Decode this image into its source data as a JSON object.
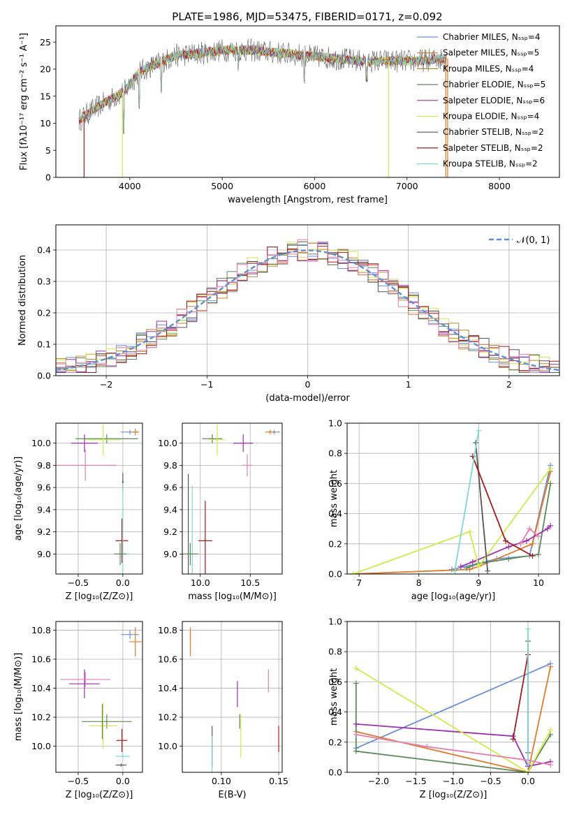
{
  "figure_title": "PLATE=1986, MJD=53475, FIBERID=0171, z=0.092",
  "colors": {
    "chabrier_miles": "#6a8fdb",
    "salpeter_miles": "#e07b2a",
    "kroupa_miles": "#b8862b",
    "chabrier_elodie": "#5a8a5a",
    "salpeter_elodie": "#9b2fae",
    "kroupa_elodie": "#d4e84a",
    "chabrier_stelib": "#555555",
    "salpeter_stelib": "#a51c1c",
    "kroupa_stelib": "#7fd8d8",
    "pink": "#e67fb0",
    "grid": "#b0b0b0",
    "normal_curve": "#5b8fd6"
  },
  "chart_data": [
    {
      "id": "spectrum",
      "type": "line",
      "xlabel": "wavelength [Angstrom, rest frame]",
      "ylabel": "Flux [fλ10⁻¹⁷ erg cm⁻² s⁻¹ A⁻¹]",
      "xlim": [
        3200,
        8650
      ],
      "ylim": [
        0,
        28
      ],
      "xticks": [
        4000,
        5000,
        6000,
        7000,
        8000
      ],
      "yticks": [
        0,
        5,
        10,
        15,
        20,
        25
      ],
      "grid": false,
      "legend_position": "top-right",
      "legend": [
        {
          "label": "Chabrier MILES, Nₛₛₚ=4",
          "color_key": "chabrier_miles"
        },
        {
          "label": "Salpeter MILES, Nₛₛₚ=5",
          "color_key": "salpeter_miles"
        },
        {
          "label": "Kroupa MILES, Nₛₛₚ=4",
          "color_key": "kroupa_miles"
        },
        {
          "label": "Chabrier ELODIE, Nₛₛₚ=5",
          "color_key": "chabrier_elodie"
        },
        {
          "label": "Salpeter ELODIE, Nₛₛₚ=6",
          "color_key": "salpeter_elodie"
        },
        {
          "label": "Kroupa ELODIE, Nₛₛₚ=4",
          "color_key": "kroupa_elodie"
        },
        {
          "label": "Chabrier STELIB, Nₛₛₚ=2",
          "color_key": "chabrier_stelib"
        },
        {
          "label": "Salpeter STELIB, Nₛₛₚ=2",
          "color_key": "salpeter_stelib"
        },
        {
          "label": "Kroupa STELIB, Nₛₛₚ=2",
          "color_key": "kroupa_stelib"
        }
      ],
      "continuum": {
        "x": [
          3450,
          3600,
          3800,
          3950,
          4100,
          4300,
          4500,
          4800,
          5000,
          5300,
          5600,
          5900,
          6200,
          6500,
          6800,
          7100,
          7450
        ],
        "y": [
          10.5,
          12.5,
          14.5,
          16,
          19.5,
          21,
          22.5,
          23,
          23.5,
          23.5,
          23,
          22.5,
          22,
          21.5,
          21.5,
          21.5,
          22
        ]
      },
      "drops": [
        {
          "x": 3505,
          "y": 0,
          "color_key": "salpeter_stelib"
        },
        {
          "x": 3920,
          "y": 0,
          "color_key": "kroupa_elodie"
        },
        {
          "x": 6800,
          "y": 0,
          "color_key": "kroupa_elodie"
        },
        {
          "x": 7420,
          "y": 0,
          "color_key": "salpeter_miles"
        }
      ],
      "absorption": [
        {
          "x": 3934,
          "depth": 7
        },
        {
          "x": 4102,
          "depth": 6
        },
        {
          "x": 4340,
          "depth": 5
        },
        {
          "x": 5175,
          "depth": 2
        },
        {
          "x": 5890,
          "depth": 4
        },
        {
          "x": 6563,
          "depth": 3
        }
      ]
    },
    {
      "id": "residuals",
      "type": "line",
      "xlabel": "(data-model)/error",
      "ylabel": "Normed distribution",
      "xlim": [
        -2.5,
        2.5
      ],
      "ylim": [
        0,
        0.48
      ],
      "xticks": [
        -2,
        -1,
        0,
        1,
        2
      ],
      "yticks": [
        0.0,
        0.1,
        0.2,
        0.3,
        0.4
      ],
      "grid": true,
      "legend_position": "top-right",
      "legend": [
        {
          "label": "𝒩(0, 1)",
          "color_key": "normal_curve",
          "style": "dashed"
        }
      ],
      "bin_width": 0.1,
      "note": "step histograms, one per model fit"
    },
    {
      "id": "age_vs_Z",
      "type": "scatter",
      "xlabel": "Z [log₁₀(Z/Z⊙)]",
      "ylabel": "age  [log₁₀(age/yr)]",
      "xlim": [
        -0.75,
        0.22
      ],
      "ylim": [
        8.82,
        10.18
      ],
      "xticks": [
        -0.5,
        0.0
      ],
      "yticks": [
        9.0,
        9.2,
        9.4,
        9.6,
        9.8,
        10.0
      ],
      "grid": true,
      "points": [
        {
          "x": 0.08,
          "y": 10.1,
          "xerr": 0.1,
          "yerr": 0.02,
          "color_key": "chabrier_miles"
        },
        {
          "x": 0.14,
          "y": 10.1,
          "xerr": 0.04,
          "yerr": 0.03,
          "color_key": "salpeter_miles"
        },
        {
          "x": -0.18,
          "y": 10.04,
          "xerr": 0.35,
          "yerr": 0.04,
          "color_key": "chabrier_elodie"
        },
        {
          "x": -0.43,
          "y": 10.0,
          "xerr": 0.15,
          "yerr": 0.08,
          "color_key": "salpeter_elodie"
        },
        {
          "x": -0.22,
          "y": 10.03,
          "xerr": 0.2,
          "yerr": 0.14,
          "color_key": "kroupa_elodie"
        },
        {
          "x": -0.42,
          "y": 9.8,
          "xerr": 0.35,
          "yerr": 0.14,
          "color_key": "pink"
        },
        {
          "x": 0.0,
          "y": 9.65,
          "xerr": 0.01,
          "yerr": 0.08,
          "color_key": "chabrier_stelib"
        },
        {
          "x": -0.01,
          "y": 9.12,
          "xerr": 0.07,
          "yerr": 0.2,
          "color_key": "salpeter_stelib"
        },
        {
          "x": 0.0,
          "y": 9.0,
          "xerr": 0.08,
          "yerr": 0.64,
          "color_key": "kroupa_stelib"
        },
        {
          "x": -0.03,
          "y": 9.0,
          "xerr": 0.07,
          "yerr": 0.1,
          "color_key": "chabrier_elodie"
        }
      ]
    },
    {
      "id": "age_vs_mass",
      "type": "scatter",
      "xlabel": "mass [log₁₀(M/M⊙)]",
      "ylabel": "",
      "xlim": [
        9.82,
        10.82
      ],
      "ylim": [
        8.82,
        10.18
      ],
      "xticks": [
        10.0,
        10.5
      ],
      "yticks": [
        9.0,
        9.2,
        9.4,
        9.6,
        9.8,
        10.0
      ],
      "grid": true,
      "points": [
        {
          "x": 10.74,
          "y": 10.1,
          "xerr": 0.06,
          "yerr": 0.02,
          "color_key": "chabrier_miles"
        },
        {
          "x": 10.7,
          "y": 10.1,
          "xerr": 0.05,
          "yerr": 0.02,
          "color_key": "salpeter_miles"
        },
        {
          "x": 10.12,
          "y": 10.04,
          "xerr": 0.1,
          "yerr": 0.04,
          "color_key": "chabrier_elodie"
        },
        {
          "x": 10.43,
          "y": 10.0,
          "xerr": 0.1,
          "yerr": 0.08,
          "color_key": "salpeter_elodie"
        },
        {
          "x": 10.17,
          "y": 10.03,
          "xerr": 0.08,
          "yerr": 0.14,
          "color_key": "kroupa_elodie"
        },
        {
          "x": 10.47,
          "y": 9.8,
          "xerr": 0.05,
          "yerr": 0.1,
          "color_key": "pink"
        },
        {
          "x": 9.88,
          "y": 9.0,
          "xerr": 0.01,
          "yerr": 0.72,
          "color_key": "chabrier_stelib"
        },
        {
          "x": 10.05,
          "y": 9.12,
          "xerr": 0.07,
          "yerr": 0.36,
          "color_key": "salpeter_stelib"
        },
        {
          "x": 9.92,
          "y": 9.0,
          "xerr": 0.07,
          "yerr": 0.62,
          "color_key": "kroupa_stelib"
        },
        {
          "x": 9.9,
          "y": 9.0,
          "xerr": 0.08,
          "yerr": 0.1,
          "color_key": "chabrier_elodie"
        }
      ]
    },
    {
      "id": "weight_vs_age",
      "type": "line",
      "xlabel": "age  [log₁₀(age/yr)]",
      "ylabel": "mass weight",
      "xlim": [
        6.8,
        10.35
      ],
      "ylim": [
        0,
        1
      ],
      "xticks": [
        7,
        8,
        9,
        10
      ],
      "yticks": [
        0.0,
        0.2,
        0.4,
        0.6,
        0.8,
        1.0
      ],
      "grid": true,
      "series": [
        {
          "color_key": "chabrier_miles",
          "x": [
            8.55,
            8.9,
            9.3,
            9.85,
            10.2
          ],
          "y": [
            0.03,
            0.06,
            0.1,
            0.12,
            0.72
          ]
        },
        {
          "color_key": "salpeter_miles",
          "x": [
            6.9,
            8.85,
            9.0,
            9.9,
            10.2
          ],
          "y": [
            0.0,
            0.03,
            0.05,
            0.2,
            0.68
          ]
        },
        {
          "color_key": "chabrier_elodie",
          "x": [
            8.8,
            9.0,
            9.5,
            10.0,
            10.2
          ],
          "y": [
            0.04,
            0.07,
            0.1,
            0.13,
            0.6
          ]
        },
        {
          "color_key": "salpeter_elodie",
          "x": [
            8.7,
            8.9,
            9.5,
            9.8,
            10.15,
            10.2
          ],
          "y": [
            0.05,
            0.08,
            0.18,
            0.22,
            0.3,
            0.32
          ]
        },
        {
          "color_key": "kroupa_elodie",
          "x": [
            6.9,
            8.85,
            9.0,
            10.2
          ],
          "y": [
            0.0,
            0.28,
            0.05,
            0.7
          ]
        },
        {
          "color_key": "pink",
          "x": [
            9.7,
            9.85,
            10.0
          ],
          "y": [
            0.2,
            0.3,
            0.25
          ]
        },
        {
          "color_key": "chabrier_stelib",
          "x": [
            8.95,
            9.15
          ],
          "y": [
            0.87,
            0.02
          ]
        },
        {
          "color_key": "salpeter_stelib",
          "x": [
            8.9,
            9.45,
            9.9
          ],
          "y": [
            0.78,
            0.22,
            0.12
          ]
        },
        {
          "color_key": "kroupa_stelib",
          "x": [
            8.6,
            9.0
          ],
          "y": [
            0.02,
            0.95
          ]
        }
      ]
    },
    {
      "id": "mass_vs_Z",
      "type": "scatter",
      "xlabel": "Z [log₁₀(Z/Z⊙)]",
      "ylabel": "mass [log₁₀(M/M⊙)]",
      "xlim": [
        -0.75,
        0.22
      ],
      "ylim": [
        9.82,
        10.86
      ],
      "xticks": [
        -0.5,
        0.0
      ],
      "yticks": [
        10.0,
        10.2,
        10.4,
        10.6,
        10.8
      ],
      "grid": true,
      "points": [
        {
          "x": 0.08,
          "y": 10.77,
          "xerr": 0.1,
          "yerr": 0.03,
          "color_key": "chabrier_miles"
        },
        {
          "x": 0.14,
          "y": 10.72,
          "xerr": 0.07,
          "yerr": 0.1,
          "color_key": "salpeter_miles"
        },
        {
          "x": -0.18,
          "y": 10.17,
          "xerr": 0.28,
          "yerr": 0.05,
          "color_key": "chabrier_elodie"
        },
        {
          "x": -0.43,
          "y": 10.43,
          "xerr": 0.17,
          "yerr": 0.1,
          "color_key": "salpeter_elodie"
        },
        {
          "x": -0.22,
          "y": 10.14,
          "xerr": 0.16,
          "yerr": 0.16,
          "color_key": "kroupa_elodie"
        },
        {
          "x": -0.42,
          "y": 10.46,
          "xerr": 0.28,
          "yerr": 0.05,
          "color_key": "pink"
        },
        {
          "x": -0.02,
          "y": 9.87,
          "xerr": 0.06,
          "yerr": 0.01,
          "color_key": "chabrier_stelib"
        },
        {
          "x": -0.01,
          "y": 10.04,
          "xerr": 0.06,
          "yerr": 0.08,
          "color_key": "salpeter_stelib"
        },
        {
          "x": 0.0,
          "y": 9.93,
          "xerr": 0.08,
          "yerr": 0.02,
          "color_key": "kroupa_stelib"
        },
        {
          "x": -0.23,
          "y": 10.17,
          "xerr": 0.01,
          "yerr": 0.12,
          "color_key": "chabrier_elodie"
        }
      ]
    },
    {
      "id": "mass_vs_ebv",
      "type": "scatter",
      "xlabel": "E(B-V)",
      "ylabel": "",
      "xlim": [
        0.066,
        0.153
      ],
      "ylim": [
        9.82,
        10.86
      ],
      "xticks": [
        0.1,
        0.15
      ],
      "yticks": [
        10.0,
        10.2,
        10.4,
        10.6,
        10.8
      ],
      "grid": true,
      "points": [
        {
          "x": 0.073,
          "y": 10.77,
          "yerr": 0.03,
          "color_key": "chabrier_miles"
        },
        {
          "x": 0.073,
          "y": 10.72,
          "yerr": 0.1,
          "color_key": "salpeter_miles"
        },
        {
          "x": 0.116,
          "y": 10.17,
          "yerr": 0.05,
          "color_key": "chabrier_elodie"
        },
        {
          "x": 0.114,
          "y": 10.36,
          "yerr": 0.09,
          "color_key": "salpeter_elodie"
        },
        {
          "x": 0.117,
          "y": 10.07,
          "yerr": 0.15,
          "color_key": "kroupa_elodie"
        },
        {
          "x": 0.141,
          "y": 10.45,
          "yerr": 0.08,
          "color_key": "pink"
        },
        {
          "x": 0.092,
          "y": 10.0,
          "yerr": 0.14,
          "color_key": "chabrier_stelib"
        },
        {
          "x": 0.15,
          "y": 10.05,
          "yerr": 0.09,
          "color_key": "salpeter_stelib"
        },
        {
          "x": 0.092,
          "y": 9.93,
          "yerr": 0.14,
          "color_key": "kroupa_stelib"
        }
      ]
    },
    {
      "id": "weight_vs_Z",
      "type": "line",
      "xlabel": "Z [log₁₀(Z/Z⊙)]",
      "ylabel": "mass weight",
      "xlim": [
        -2.42,
        0.42
      ],
      "ylim": [
        0,
        1
      ],
      "xticks": [
        -2.0,
        -1.5,
        -1.0,
        -0.5,
        0.0
      ],
      "yticks": [
        0.0,
        0.2,
        0.4,
        0.6,
        0.8,
        1.0
      ],
      "grid": true,
      "series": [
        {
          "color_key": "chabrier_miles",
          "x": [
            -2.3,
            0.3
          ],
          "y": [
            0.16,
            0.72
          ]
        },
        {
          "color_key": "salpeter_miles",
          "x": [
            -2.3,
            0.0,
            0.3
          ],
          "y": [
            0.27,
            0.0,
            0.7
          ]
        },
        {
          "color_key": "chabrier_elodie",
          "x": [
            -2.3,
            -2.3,
            0.0,
            0.3
          ],
          "y": [
            0.59,
            0.14,
            0.0,
            0.25
          ]
        },
        {
          "color_key": "salpeter_elodie",
          "x": [
            -2.3,
            -0.2,
            0.0,
            0.3
          ],
          "y": [
            0.32,
            0.24,
            0.04,
            0.07
          ]
        },
        {
          "color_key": "kroupa_elodie",
          "x": [
            -2.3,
            0.0,
            0.3
          ],
          "y": [
            0.69,
            0.0,
            0.28
          ]
        },
        {
          "color_key": "pink",
          "x": [
            -2.3,
            -1.35,
            0.0,
            0.3
          ],
          "y": [
            0.25,
            0.17,
            0.08,
            0.05
          ]
        },
        {
          "color_key": "chabrier_stelib",
          "x": [
            0.0,
            0.0
          ],
          "y": [
            0.87,
            0.13
          ]
        },
        {
          "color_key": "salpeter_stelib",
          "x": [
            -0.2,
            0.0
          ],
          "y": [
            0.22,
            0.78
          ]
        },
        {
          "color_key": "kroupa_stelib",
          "x": [
            0.0,
            0.0
          ],
          "y": [
            0.95,
            0.05
          ]
        }
      ]
    }
  ]
}
